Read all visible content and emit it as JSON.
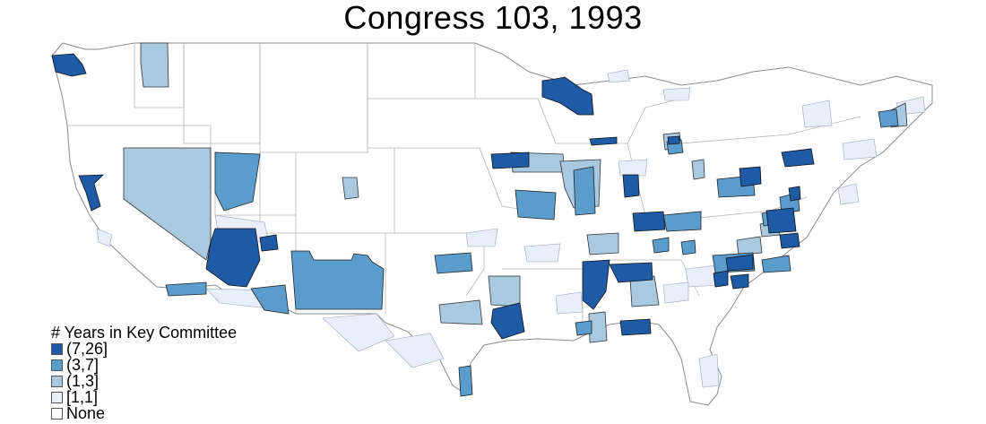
{
  "title": "Congress 103, 1993",
  "legend": {
    "title": "# Years in Key Committee",
    "items": [
      {
        "label": "(7,26]",
        "color": "#1f5aa6"
      },
      {
        "label": "(3,7]",
        "color": "#5a9ccb"
      },
      {
        "label": "(1,3]",
        "color": "#a9c9e1"
      },
      {
        "label": "[1,1]",
        "color": "#e8eefa"
      },
      {
        "label": "None",
        "color": "#ffffff"
      }
    ]
  },
  "map": {
    "region": "contiguous-united-states",
    "unit": "congressional-districts",
    "border_color": "#9a9a9a"
  }
}
